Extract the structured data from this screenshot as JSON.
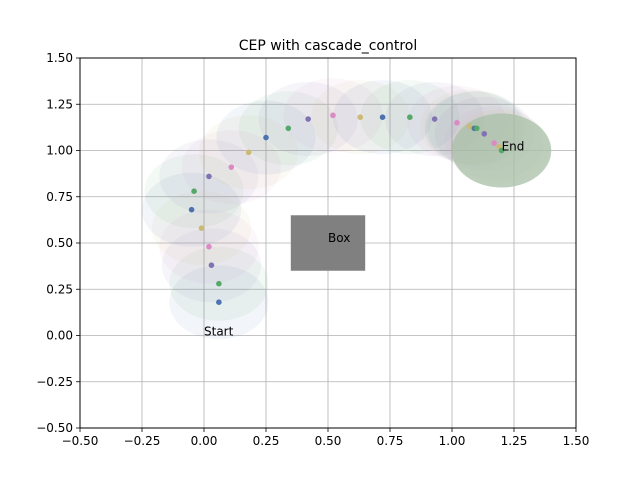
{
  "chart_data": {
    "type": "scatter",
    "title": "CEP with cascade_control",
    "xlabel": "",
    "ylabel": "",
    "xlim": [
      -0.5,
      1.5
    ],
    "ylim": [
      -0.5,
      1.5
    ],
    "xticks": [
      -0.5,
      -0.25,
      0.0,
      0.25,
      0.5,
      0.75,
      1.0,
      1.25,
      1.5
    ],
    "yticks": [
      -0.5,
      -0.25,
      0.0,
      0.25,
      0.5,
      0.75,
      1.0,
      1.25,
      1.5
    ],
    "xtick_labels": [
      "−0.50",
      "−0.25",
      "0.00",
      "0.25",
      "0.50",
      "0.75",
      "1.00",
      "1.25",
      "1.50"
    ],
    "ytick_labels": [
      "−0.50",
      "−0.25",
      "0.00",
      "0.25",
      "0.50",
      "0.75",
      "1.00",
      "1.25",
      "1.50"
    ],
    "grid": true,
    "obstacle": {
      "label": "Box",
      "x0": 0.35,
      "x1": 0.65,
      "y0": 0.35,
      "y1": 0.65,
      "color": "#808080"
    },
    "annotations": [
      {
        "text": "Start",
        "x": 0.0,
        "y": 0.0
      },
      {
        "text": "End",
        "x": 1.2,
        "y": 1.0
      }
    ],
    "uncertainty_radius": 0.2,
    "points": [
      {
        "x": 0.06,
        "y": 0.18,
        "color": "#4c72b0"
      },
      {
        "x": 0.06,
        "y": 0.28,
        "color": "#55a868"
      },
      {
        "x": 0.03,
        "y": 0.38,
        "color": "#8172b2"
      },
      {
        "x": 0.02,
        "y": 0.48,
        "color": "#da8bc3"
      },
      {
        "x": -0.01,
        "y": 0.58,
        "color": "#ccb974"
      },
      {
        "x": -0.05,
        "y": 0.68,
        "color": "#4c72b0"
      },
      {
        "x": -0.04,
        "y": 0.78,
        "color": "#55a868"
      },
      {
        "x": 0.02,
        "y": 0.86,
        "color": "#8172b2"
      },
      {
        "x": 0.11,
        "y": 0.91,
        "color": "#da8bc3"
      },
      {
        "x": 0.18,
        "y": 0.99,
        "color": "#ccb974"
      },
      {
        "x": 0.25,
        "y": 1.07,
        "color": "#4c72b0"
      },
      {
        "x": 0.34,
        "y": 1.12,
        "color": "#55a868"
      },
      {
        "x": 0.42,
        "y": 1.17,
        "color": "#8172b2"
      },
      {
        "x": 0.52,
        "y": 1.19,
        "color": "#da8bc3"
      },
      {
        "x": 0.63,
        "y": 1.18,
        "color": "#ccb974"
      },
      {
        "x": 0.72,
        "y": 1.18,
        "color": "#4c72b0"
      },
      {
        "x": 0.83,
        "y": 1.18,
        "color": "#55a868"
      },
      {
        "x": 0.93,
        "y": 1.17,
        "color": "#8172b2"
      },
      {
        "x": 1.02,
        "y": 1.15,
        "color": "#da8bc3"
      },
      {
        "x": 1.07,
        "y": 1.13,
        "color": "#ccb974"
      },
      {
        "x": 1.09,
        "y": 1.12,
        "color": "#4c72b0"
      },
      {
        "x": 1.1,
        "y": 1.12,
        "color": "#55a868"
      },
      {
        "x": 1.13,
        "y": 1.09,
        "color": "#8172b2"
      },
      {
        "x": 1.17,
        "y": 1.04,
        "color": "#da8bc3"
      },
      {
        "x": 1.19,
        "y": 1.02,
        "color": "#ccb974"
      },
      {
        "x": 1.2,
        "y": 1.0,
        "color": "#55a868"
      }
    ]
  }
}
